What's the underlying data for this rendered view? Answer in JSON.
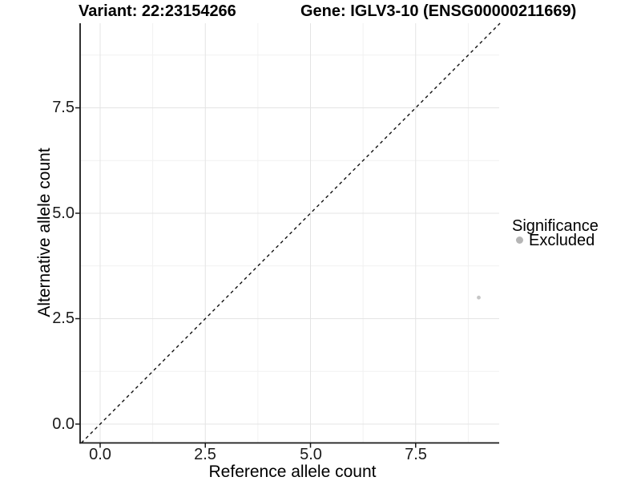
{
  "title": {
    "variant": "Variant: 22:23154266",
    "gene": "Gene: IGLV3-10 (ENSG00000211669)"
  },
  "axes": {
    "x_label": "Reference allele count",
    "y_label": "Alternative allele count"
  },
  "legend": {
    "title": "Significance",
    "items": [
      {
        "label": "Excluded",
        "color": "#b5b5b5"
      }
    ]
  },
  "colors": {
    "point": "#c6c6c6",
    "legend_dot": "#b5b5b5",
    "grid_major": "#e4e4e4",
    "grid_minor": "#f1f1f1",
    "axis_line": "#1a1a1a",
    "identity_line": "#111111"
  },
  "chart_data": {
    "type": "scatter",
    "title": "Variant: 22:23154266   Gene: IGLV3-10 (ENSG00000211669)",
    "xlabel": "Reference allele count",
    "ylabel": "Alternative allele count",
    "xlim": [
      -0.47,
      9.5
    ],
    "ylim": [
      -0.45,
      9.5
    ],
    "x_tick_values": [
      0,
      2.5,
      5,
      7.5
    ],
    "y_tick_values": [
      0,
      2.5,
      5,
      7.5
    ],
    "x_tick_labels": [
      "0.0",
      "2.5",
      "5.0",
      "7.5"
    ],
    "y_tick_labels": [
      "0.0",
      "2.5",
      "5.0",
      "7.5"
    ],
    "minor_tick_values": [
      1.25,
      3.75,
      6.25,
      8.75
    ],
    "grid": true,
    "legend_position": "right",
    "series": [
      {
        "name": "Excluded",
        "color": "#c6c6c6",
        "points": [
          {
            "x": 9,
            "y": 3
          }
        ]
      }
    ],
    "reference_line": {
      "type": "identity",
      "slope": 1,
      "intercept": 0,
      "style": "dashed"
    }
  }
}
